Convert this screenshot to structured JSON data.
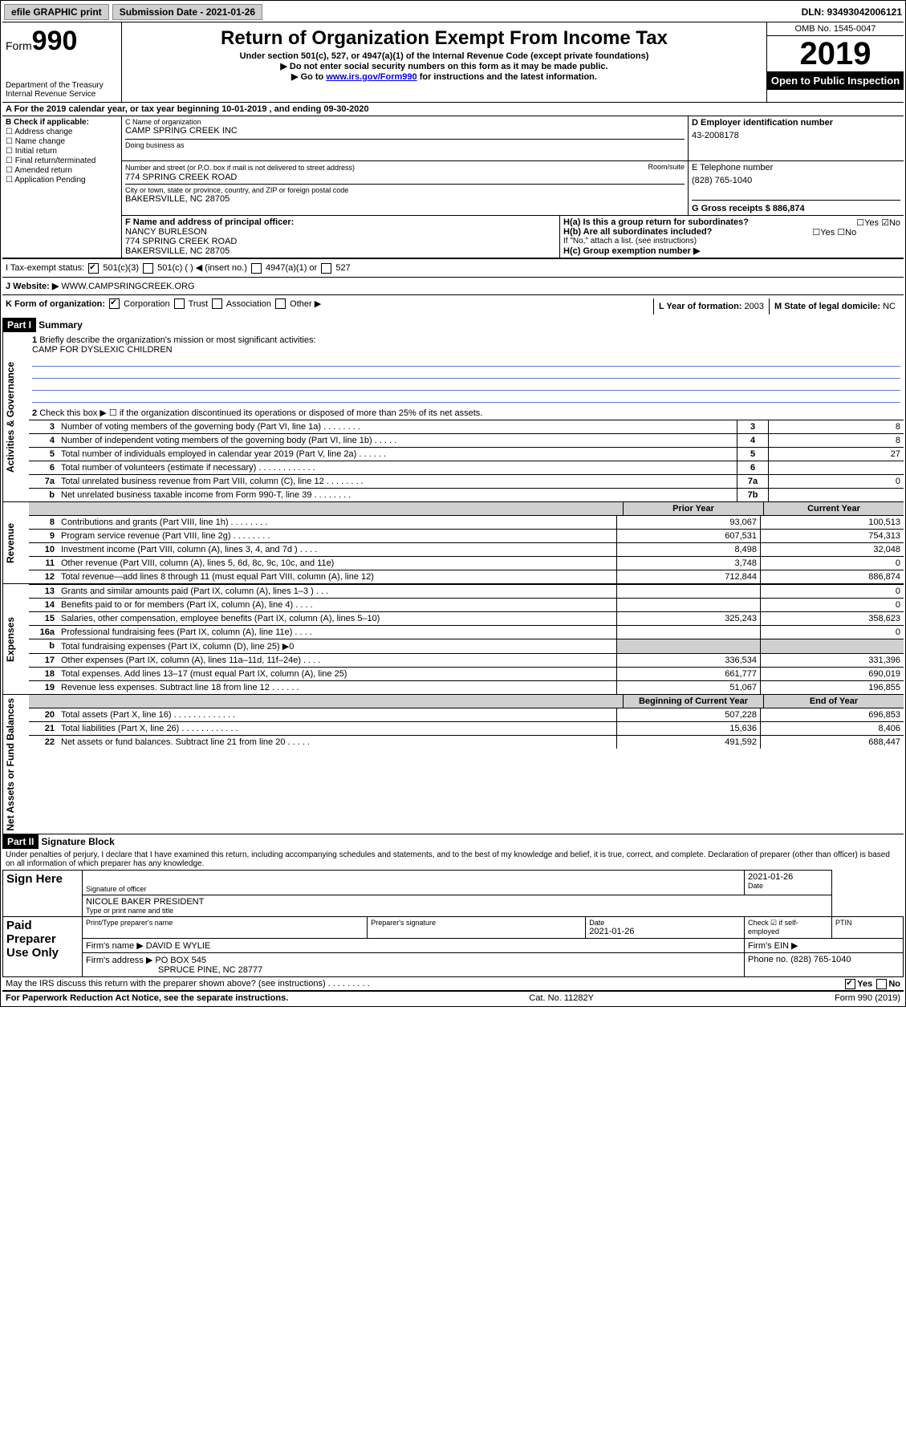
{
  "top": {
    "efile": "efile GRAPHIC print",
    "submission": "Submission Date - 2021-01-26",
    "dln": "DLN: 93493042006121"
  },
  "header": {
    "form_prefix": "Form",
    "form_number": "990",
    "dept": "Department of the Treasury",
    "irs": "Internal Revenue Service",
    "title": "Return of Organization Exempt From Income Tax",
    "sub1": "Under section 501(c), 527, or 4947(a)(1) of the Internal Revenue Code (except private foundations)",
    "sub2": "▶ Do not enter social security numbers on this form as it may be made public.",
    "sub3_prefix": "▶ Go to ",
    "sub3_link": "www.irs.gov/Form990",
    "sub3_suffix": " for instructions and the latest information.",
    "omb": "OMB No. 1545-0047",
    "year": "2019",
    "open": "Open to Public Inspection"
  },
  "lineA": "A For the 2019 calendar year, or tax year beginning 10-01-2019    , and ending 09-30-2020",
  "colB": {
    "title": "B Check if applicable:",
    "opts": [
      "Address change",
      "Name change",
      "Initial return",
      "Final return/terminated",
      "Amended return",
      "Application Pending"
    ]
  },
  "name": {
    "c_label": "C Name of organization",
    "org": "CAMP SPRING CREEK INC",
    "dba_label": "Doing business as",
    "addr_label": "Number and street (or P.O. box if mail is not delivered to street address)",
    "room_label": "Room/suite",
    "addr": "774 SPRING CREEK ROAD",
    "city_label": "City or town, state or province, country, and ZIP or foreign postal code",
    "city": "BAKERSVILLE, NC  28705"
  },
  "d": {
    "label": "D Employer identification number",
    "ein": "43-2008178"
  },
  "e": {
    "label": "E Telephone number",
    "phone": "(828) 765-1040"
  },
  "g": {
    "label": "G Gross receipts $",
    "amount": "886,874"
  },
  "f": {
    "label": "F  Name and address of principal officer:",
    "name": "NANCY BURLESON",
    "addr": "774 SPRING CREEK ROAD",
    "city": "BAKERSVILLE, NC  28705"
  },
  "h": {
    "a": "H(a)  Is this a group return for subordinates?",
    "b": "H(b)  Are all subordinates included?",
    "b_note": "If \"No,\" attach a list. (see instructions)",
    "c": "H(c)  Group exemption number ▶",
    "yes": "Yes",
    "no": "No"
  },
  "i": {
    "label": "I   Tax-exempt status:",
    "o1": "501(c)(3)",
    "o2": "501(c) (   ) ◀ (insert no.)",
    "o3": "4947(a)(1) or",
    "o4": "527"
  },
  "j": {
    "label": "J   Website: ▶",
    "url": "WWW.CAMPSRINGCREEK.ORG"
  },
  "k": {
    "label": "K Form of organization:",
    "o1": "Corporation",
    "o2": "Trust",
    "o3": "Association",
    "o4": "Other ▶"
  },
  "l": {
    "label": "L Year of formation:",
    "val": "2003"
  },
  "m": {
    "label": "M State of legal domicile:",
    "val": "NC"
  },
  "part1": {
    "tag": "Part I",
    "title": "Summary"
  },
  "sections": {
    "gov": "Activities & Governance",
    "rev": "Revenue",
    "exp": "Expenses",
    "net": "Net Assets or Fund Balances"
  },
  "q1": {
    "num": "1",
    "text": "Briefly describe the organization's mission or most significant activities:",
    "mission": "CAMP FOR DYSLEXIC CHILDREN"
  },
  "q2": {
    "num": "2",
    "text": "Check this box ▶ ☐  if the organization discontinued its operations or disposed of more than 25% of its net assets."
  },
  "lines": [
    {
      "n": "3",
      "t": "Number of voting members of the governing body (Part VI, line 1a)   .    .    .    .    .    .    .    .",
      "b": "3",
      "v": "8"
    },
    {
      "n": "4",
      "t": "Number of independent voting members of the governing body (Part VI, line 1b)  .    .    .    .    .",
      "b": "4",
      "v": "8"
    },
    {
      "n": "5",
      "t": "Total number of individuals employed in calendar year 2019 (Part V, line 2a)  .    .    .    .    .    .",
      "b": "5",
      "v": "27"
    },
    {
      "n": "6",
      "t": "Total number of volunteers (estimate if necessary)   .    .    .    .    .    .    .    .    .    .    .    .",
      "b": "6",
      "v": ""
    },
    {
      "n": "7a",
      "t": "Total unrelated business revenue from Part VIII, column (C), line 12  .    .    .    .    .    .    .    .",
      "b": "7a",
      "v": "0"
    },
    {
      "n": "b",
      "t": "Net unrelated business taxable income from Form 990-T, line 39   .    .    .    .    .    .    .    .",
      "b": "7b",
      "v": ""
    }
  ],
  "twoColHeaders": {
    "h1": "Prior Year",
    "h2": "Current Year"
  },
  "revenue": [
    {
      "n": "8",
      "t": "Contributions and grants (Part VIII, line 1h)  .    .    .    .    .    .    .    .",
      "v1": "93,067",
      "v2": "100,513"
    },
    {
      "n": "9",
      "t": "Program service revenue (Part VIII, line 2g)  .    .    .    .    .    .    .    .",
      "v1": "607,531",
      "v2": "754,313"
    },
    {
      "n": "10",
      "t": "Investment income (Part VIII, column (A), lines 3, 4, and 7d )  .    .    .    .",
      "v1": "8,498",
      "v2": "32,048"
    },
    {
      "n": "11",
      "t": "Other revenue (Part VIII, column (A), lines 5, 6d, 8c, 9c, 10c, and 11e)",
      "v1": "3,748",
      "v2": "0"
    },
    {
      "n": "12",
      "t": "Total revenue—add lines 8 through 11 (must equal Part VIII, column (A), line 12)",
      "v1": "712,844",
      "v2": "886,874"
    }
  ],
  "expenses": [
    {
      "n": "13",
      "t": "Grants and similar amounts paid (Part IX, column (A), lines 1–3 )  .    .    .",
      "v1": "",
      "v2": "0"
    },
    {
      "n": "14",
      "t": "Benefits paid to or for members (Part IX, column (A), line 4)  .    .    .    .",
      "v1": "",
      "v2": "0"
    },
    {
      "n": "15",
      "t": "Salaries, other compensation, employee benefits (Part IX, column (A), lines 5–10)",
      "v1": "325,243",
      "v2": "358,623"
    },
    {
      "n": "16a",
      "t": "Professional fundraising fees (Part IX, column (A), line 11e)  .    .    .    .",
      "v1": "",
      "v2": "0"
    },
    {
      "n": "b",
      "t": "Total fundraising expenses (Part IX, column (D), line 25) ▶0",
      "v1": "shade",
      "v2": "shade"
    },
    {
      "n": "17",
      "t": "Other expenses (Part IX, column (A), lines 11a–11d, 11f–24e)  .    .    .    .",
      "v1": "336,534",
      "v2": "331,396"
    },
    {
      "n": "18",
      "t": "Total expenses. Add lines 13–17 (must equal Part IX, column (A), line 25)",
      "v1": "661,777",
      "v2": "690,019"
    },
    {
      "n": "19",
      "t": "Revenue less expenses. Subtract line 18 from line 12  .    .    .    .    .    .",
      "v1": "51,067",
      "v2": "196,855"
    }
  ],
  "netHeaders": {
    "h1": "Beginning of Current Year",
    "h2": "End of Year"
  },
  "net": [
    {
      "n": "20",
      "t": "Total assets (Part X, line 16)  .    .    .    .    .    .    .    .    .    .    .    .    .",
      "v1": "507,228",
      "v2": "696,853"
    },
    {
      "n": "21",
      "t": "Total liabilities (Part X, line 26)  .    .    .    .    .    .    .    .    .    .    .    .",
      "v1": "15,636",
      "v2": "8,406"
    },
    {
      "n": "22",
      "t": "Net assets or fund balances. Subtract line 21 from line 20  .    .    .    .    .",
      "v1": "491,592",
      "v2": "688,447"
    }
  ],
  "part2": {
    "tag": "Part II",
    "title": "Signature Block",
    "penalty": "Under penalties of perjury, I declare that I have examined this return, including accompanying schedules and statements, and to the best of my knowledge and belief, it is true, correct, and complete. Declaration of preparer (other than officer) is based on all information of which preparer has any knowledge."
  },
  "sign": {
    "here": "Sign Here",
    "sig_officer": "Signature of officer",
    "date": "Date",
    "date_val": "2021-01-26",
    "name_title": "NICOLE BAKER  PRESIDENT",
    "type_label": "Type or print name and title"
  },
  "preparer": {
    "label": "Paid Preparer Use Only",
    "h1": "Print/Type preparer's name",
    "h2": "Preparer's signature",
    "h3": "Date",
    "h3v": "2021-01-26",
    "h4": "Check ☑ if self-employed",
    "h5": "PTIN",
    "firm_name_l": "Firm's name     ▶",
    "firm_name": "DAVID E WYLIE",
    "firm_ein_l": "Firm's EIN ▶",
    "firm_addr_l": "Firm's address ▶",
    "firm_addr1": "PO BOX 545",
    "firm_addr2": "SPRUCE PINE, NC  28777",
    "phone_l": "Phone no.",
    "phone": "(828) 765-1040"
  },
  "discuss": "May the IRS discuss this return with the preparer shown above? (see instructions)   .    .    .    .    .    .    .    .    .",
  "footer": {
    "left": "For Paperwork Reduction Act Notice, see the separate instructions.",
    "mid": "Cat. No. 11282Y",
    "right": "Form 990 (2019)"
  }
}
